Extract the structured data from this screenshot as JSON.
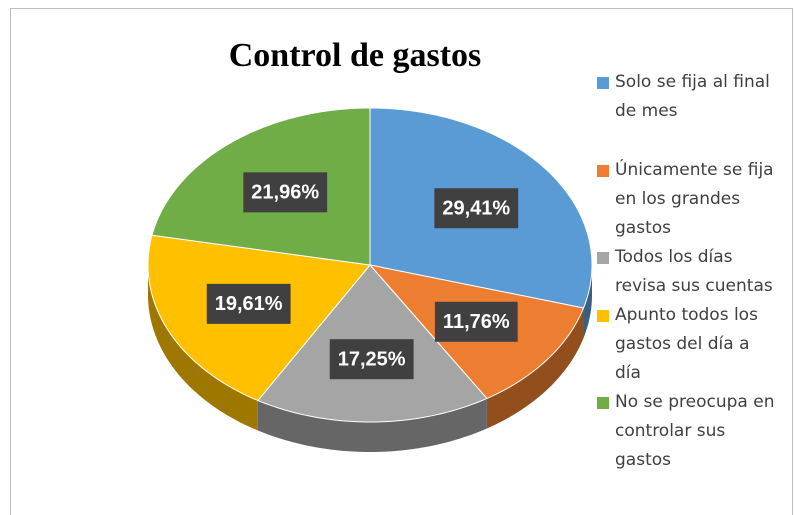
{
  "chart_data": {
    "type": "pie",
    "title": "Control de gastos",
    "categories": [
      "Solo se fija al final de mes",
      "Únicamente se fija en los grandes gastos",
      "Todos los días revisa sus cuentas",
      "Apunto todos los gastos del día a día",
      "No se preocupa en controlar sus gastos"
    ],
    "values": [
      29.41,
      11.76,
      17.25,
      19.61,
      21.96
    ],
    "value_labels": [
      "29,41%",
      "11,76%",
      "17,25%",
      "19,61%",
      "21,96%"
    ],
    "colors": [
      "#5b9bd5",
      "#ed7d31",
      "#a5a5a5",
      "#ffc000",
      "#70ad47"
    ],
    "legend": "right"
  }
}
